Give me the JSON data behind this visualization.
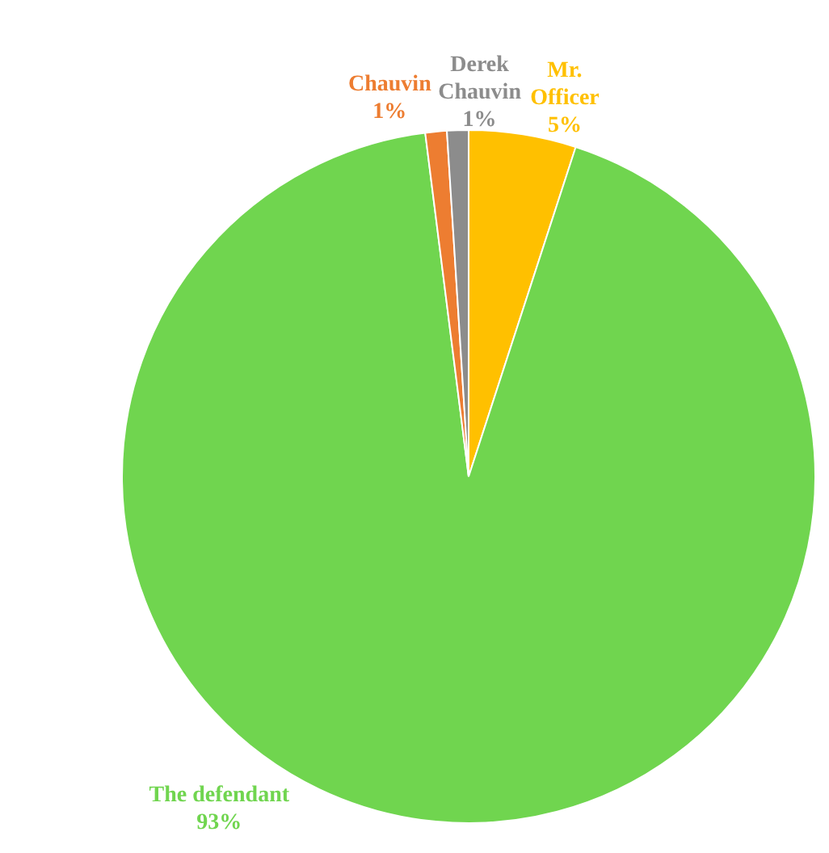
{
  "chart_data": {
    "type": "pie",
    "categories": [
      "Mr. Officer",
      "The defendant",
      "Chauvin",
      "Derek Chauvin"
    ],
    "values": [
      5,
      93,
      1,
      1
    ],
    "value_labels": [
      "5%",
      "93%",
      "1%",
      "1%"
    ],
    "colors": [
      "#ffc000",
      "#70d54f",
      "#ed7d31",
      "#8c8c8c"
    ],
    "legend": false
  }
}
